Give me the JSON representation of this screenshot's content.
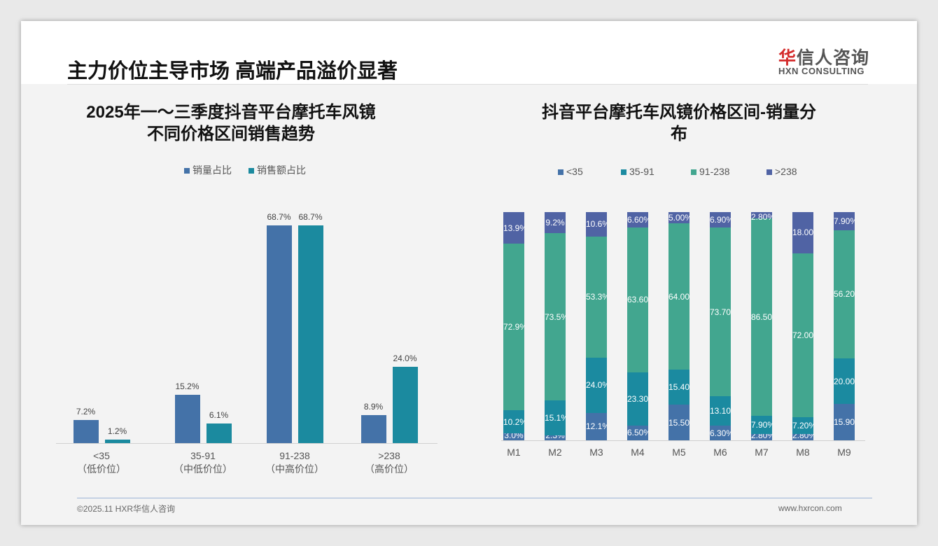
{
  "header": {
    "title": "主力价位主导市场 高端产品溢价显著",
    "logo_cn_red": "华",
    "logo_cn_rest": "信人咨询",
    "logo_en": "HXN CONSULTING"
  },
  "footer": {
    "left": "©2025.11 HXR华信人咨询",
    "right": "www.hxrcon.com"
  },
  "chart_data": [
    {
      "type": "bar",
      "title_line1": "2025年一～三季度抖音平台摩托车风镜",
      "title_line2": "不同价格区间销售趋势",
      "categories": [
        {
          "name": "<35",
          "sub": "（低价位）"
        },
        {
          "name": "35-91",
          "sub": "（中低价位）"
        },
        {
          "name": "91-238",
          "sub": "（中高价位）"
        },
        {
          "name": ">238",
          "sub": "（高价位）"
        }
      ],
      "series": [
        {
          "name": "销量占比",
          "color": "#4472a8",
          "values": [
            7.2,
            15.2,
            68.7,
            8.9
          ],
          "labels": [
            "7.2%",
            "15.2%",
            "68.7%",
            "8.9%"
          ]
        },
        {
          "name": "销售额占比",
          "color": "#1b8a9f",
          "values": [
            1.2,
            6.1,
            68.7,
            24.0
          ],
          "labels": [
            "1.2%",
            "6.1%",
            "68.7%",
            "24.0%"
          ]
        }
      ],
      "ylim": [
        0,
        70
      ],
      "legend": "top"
    },
    {
      "type": "bar",
      "stacked": true,
      "title_line1": "抖音平台摩托车风镜价格区间-销量分",
      "title_line2": "布",
      "categories": [
        "M1",
        "M2",
        "M3",
        "M4",
        "M5",
        "M6",
        "M7",
        "M8",
        "M9"
      ],
      "series": [
        {
          "name": "<35",
          "color": "#4472a8",
          "values": [
            3.0,
            2.3,
            12.1,
            6.5,
            15.5,
            6.3,
            2.8,
            2.8,
            15.9
          ],
          "labels": [
            "3.0%",
            "2.3%",
            "12.1%",
            "6.50%",
            "15.50%",
            "6.30%",
            "2.80%",
            "2.80%",
            "15.90%"
          ]
        },
        {
          "name": "35-91",
          "color": "#1b8aa0",
          "values": [
            10.2,
            15.1,
            24.0,
            23.3,
            15.4,
            13.1,
            7.9,
            7.2,
            20.0
          ],
          "labels": [
            "10.2%",
            "15.1%",
            "24.0%",
            "23.30%",
            "15.40%",
            "13.10%",
            "7.90%",
            "7.20%",
            "20.00%"
          ]
        },
        {
          "name": "91-238",
          "color": "#42a68f",
          "values": [
            72.9,
            73.5,
            53.3,
            63.6,
            64.0,
            73.7,
            86.5,
            72.0,
            56.2
          ],
          "labels": [
            "72.9%",
            "73.5%",
            "53.3%",
            "63.60%",
            "64.00%",
            "73.70%",
            "86.50%",
            "72.00%",
            "56.20%"
          ]
        },
        {
          "name": ">238",
          "color": "#5063a4",
          "values": [
            13.9,
            9.2,
            10.6,
            6.6,
            5.0,
            6.9,
            2.8,
            18.0,
            7.9
          ],
          "labels": [
            "13.9%",
            "9.2%",
            "10.6%",
            "6.60%",
            "5.00%",
            "6.90%",
            "2.80%",
            "18.00%",
            "7.90%"
          ]
        }
      ],
      "ylim": [
        0,
        100
      ],
      "legend": "top"
    }
  ]
}
